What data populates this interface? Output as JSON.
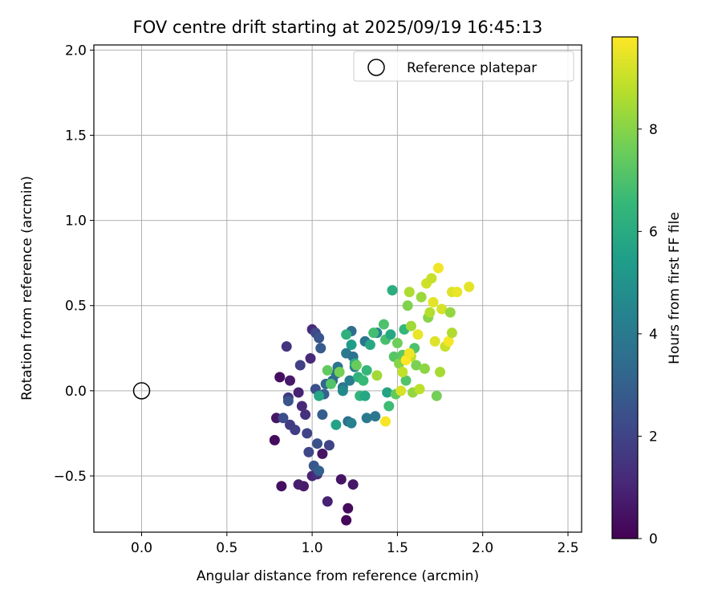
{
  "chart_data": {
    "type": "scatter",
    "title": "FOV centre drift starting at 2025/09/19 16:45:13",
    "xlabel": "Angular distance from reference (arcmin)",
    "ylabel": "Rotation from reference (arcmin)",
    "xlim": [
      -0.28,
      2.58
    ],
    "ylim": [
      -0.83,
      2.03
    ],
    "xticks": [
      0.0,
      0.5,
      1.0,
      1.5,
      2.0,
      2.5
    ],
    "xtick_labels": [
      "0.0",
      "0.5",
      "1.0",
      "1.5",
      "2.0",
      "2.5"
    ],
    "yticks": [
      -0.5,
      0.0,
      0.5,
      1.0,
      1.5,
      2.0
    ],
    "ytick_labels": [
      "−0.5",
      "0.0",
      "0.5",
      "1.0",
      "1.5",
      "2.0"
    ],
    "grid": true,
    "legend": {
      "position": "top-right",
      "entries": [
        "Reference platepar"
      ]
    },
    "reference_point": {
      "x": 0.0,
      "y": 0.0,
      "label": "Reference platepar"
    },
    "colorbar": {
      "label": "Hours from first FF file",
      "min": 0,
      "max": 9.8,
      "ticks": [
        0,
        2,
        4,
        6,
        8
      ],
      "tick_labels": [
        "0",
        "2",
        "4",
        "6",
        "8"
      ],
      "colormap": "viridis",
      "colormap_stops": [
        "#440154",
        "#482878",
        "#3e4989",
        "#31688e",
        "#26828e",
        "#1f9e89",
        "#35b779",
        "#6ece58",
        "#b5de2b",
        "#fde725"
      ]
    },
    "points": [
      {
        "x": 1.2,
        "y": -0.76,
        "t": 0.2
      },
      {
        "x": 1.21,
        "y": -0.69,
        "t": 0.3
      },
      {
        "x": 0.82,
        "y": -0.56,
        "t": 0.4
      },
      {
        "x": 1.17,
        "y": -0.52,
        "t": 0.5
      },
      {
        "x": 1.24,
        "y": -0.55,
        "t": 0.6
      },
      {
        "x": 0.95,
        "y": -0.56,
        "t": 0.7
      },
      {
        "x": 0.92,
        "y": -0.55,
        "t": 0.8
      },
      {
        "x": 1.09,
        "y": -0.65,
        "t": 0.9
      },
      {
        "x": 1.06,
        "y": -0.37,
        "t": 0.5
      },
      {
        "x": 0.78,
        "y": -0.29,
        "t": 0.3
      },
      {
        "x": 0.79,
        "y": -0.16,
        "t": 0.6
      },
      {
        "x": 0.81,
        "y": 0.08,
        "t": 0.4
      },
      {
        "x": 0.87,
        "y": 0.06,
        "t": 0.7
      },
      {
        "x": 0.92,
        "y": -0.01,
        "t": 0.9
      },
      {
        "x": 1.0,
        "y": -0.5,
        "t": 1.0
      },
      {
        "x": 1.03,
        "y": -0.49,
        "t": 1.3
      },
      {
        "x": 0.94,
        "y": -0.09,
        "t": 1.2
      },
      {
        "x": 0.96,
        "y": -0.14,
        "t": 1.4
      },
      {
        "x": 0.85,
        "y": 0.26,
        "t": 1.5
      },
      {
        "x": 0.86,
        "y": -0.04,
        "t": 1.6
      },
      {
        "x": 0.87,
        "y": -0.2,
        "t": 1.7
      },
      {
        "x": 0.9,
        "y": -0.23,
        "t": 1.8
      },
      {
        "x": 0.93,
        "y": 0.15,
        "t": 1.9
      },
      {
        "x": 0.97,
        "y": -0.25,
        "t": 2.0
      },
      {
        "x": 0.98,
        "y": -0.36,
        "t": 2.1
      },
      {
        "x": 0.99,
        "y": 0.19,
        "t": 1.1
      },
      {
        "x": 1.0,
        "y": 0.36,
        "t": 1.2
      },
      {
        "x": 1.02,
        "y": 0.34,
        "t": 2.2
      },
      {
        "x": 1.02,
        "y": 0.01,
        "t": 2.4
      },
      {
        "x": 1.03,
        "y": -0.31,
        "t": 2.5
      },
      {
        "x": 1.04,
        "y": 0.31,
        "t": 2.6
      },
      {
        "x": 1.05,
        "y": 0.25,
        "t": 2.8
      },
      {
        "x": 1.06,
        "y": -0.14,
        "t": 2.9
      },
      {
        "x": 1.07,
        "y": -0.02,
        "t": 3.0
      },
      {
        "x": 1.08,
        "y": 0.04,
        "t": 3.2
      },
      {
        "x": 1.1,
        "y": -0.32,
        "t": 3.3
      },
      {
        "x": 1.1,
        "y": -0.32,
        "t": 2.0
      },
      {
        "x": 1.12,
        "y": 0.06,
        "t": 3.4
      },
      {
        "x": 1.14,
        "y": 0.1,
        "t": 3.6
      },
      {
        "x": 0.83,
        "y": -0.16,
        "t": 2.3
      },
      {
        "x": 0.86,
        "y": -0.06,
        "t": 2.6
      },
      {
        "x": 1.01,
        "y": -0.44,
        "t": 2.7
      },
      {
        "x": 1.04,
        "y": -0.47,
        "t": 3.0
      },
      {
        "x": 1.15,
        "y": 0.14,
        "t": 3.8
      },
      {
        "x": 1.18,
        "y": 0.02,
        "t": 3.9
      },
      {
        "x": 1.2,
        "y": 0.22,
        "t": 4.0
      },
      {
        "x": 1.22,
        "y": 0.06,
        "t": 4.2
      },
      {
        "x": 1.23,
        "y": 0.35,
        "t": 3.5
      },
      {
        "x": 1.24,
        "y": 0.2,
        "t": 3.7
      },
      {
        "x": 1.25,
        "y": 0.14,
        "t": 4.1
      },
      {
        "x": 1.21,
        "y": -0.18,
        "t": 3.6
      },
      {
        "x": 1.23,
        "y": -0.19,
        "t": 4.3
      },
      {
        "x": 1.31,
        "y": 0.29,
        "t": 3.8
      },
      {
        "x": 1.32,
        "y": -0.16,
        "t": 4.0
      },
      {
        "x": 1.37,
        "y": -0.15,
        "t": 3.9
      },
      {
        "x": 1.38,
        "y": 0.34,
        "t": 4.4
      },
      {
        "x": 1.18,
        "y": 0.0,
        "t": 4.6
      },
      {
        "x": 1.14,
        "y": -0.2,
        "t": 5.6
      },
      {
        "x": 1.2,
        "y": 0.33,
        "t": 6.2
      },
      {
        "x": 1.23,
        "y": 0.27,
        "t": 5.4
      },
      {
        "x": 1.25,
        "y": 0.16,
        "t": 6.0
      },
      {
        "x": 1.27,
        "y": 0.08,
        "t": 6.3
      },
      {
        "x": 1.28,
        "y": -0.03,
        "t": 6.4
      },
      {
        "x": 1.3,
        "y": 0.06,
        "t": 6.6
      },
      {
        "x": 1.31,
        "y": -0.03,
        "t": 5.8
      },
      {
        "x": 1.32,
        "y": 0.12,
        "t": 6.5
      },
      {
        "x": 1.34,
        "y": 0.27,
        "t": 5.9
      },
      {
        "x": 1.36,
        "y": 0.34,
        "t": 6.8
      },
      {
        "x": 1.38,
        "y": 0.09,
        "t": 8.4
      },
      {
        "x": 1.42,
        "y": 0.39,
        "t": 7.0
      },
      {
        "x": 1.43,
        "y": 0.3,
        "t": 6.9
      },
      {
        "x": 1.44,
        "y": -0.01,
        "t": 5.7
      },
      {
        "x": 1.45,
        "y": -0.09,
        "t": 6.7
      },
      {
        "x": 1.46,
        "y": 0.33,
        "t": 5.9
      },
      {
        "x": 1.47,
        "y": 0.59,
        "t": 6.1
      },
      {
        "x": 1.48,
        "y": 0.2,
        "t": 7.2
      },
      {
        "x": 1.49,
        "y": -0.02,
        "t": 7.4
      },
      {
        "x": 1.5,
        "y": 0.28,
        "t": 7.6
      },
      {
        "x": 1.51,
        "y": 0.16,
        "t": 8.0
      },
      {
        "x": 1.52,
        "y": 0.0,
        "t": 9.2
      },
      {
        "x": 1.53,
        "y": 0.21,
        "t": 7.3
      },
      {
        "x": 1.54,
        "y": 0.36,
        "t": 6.5
      },
      {
        "x": 1.55,
        "y": 0.06,
        "t": 7.1
      },
      {
        "x": 1.56,
        "y": 0.5,
        "t": 7.9
      },
      {
        "x": 1.57,
        "y": 0.58,
        "t": 8.6
      },
      {
        "x": 1.58,
        "y": 0.2,
        "t": 8.9
      },
      {
        "x": 1.59,
        "y": -0.01,
        "t": 8.2
      },
      {
        "x": 1.6,
        "y": 0.25,
        "t": 7.0
      },
      {
        "x": 1.61,
        "y": 0.15,
        "t": 7.8
      },
      {
        "x": 1.62,
        "y": 0.33,
        "t": 9.5
      },
      {
        "x": 1.63,
        "y": 0.01,
        "t": 8.8
      },
      {
        "x": 1.64,
        "y": 0.55,
        "t": 8.3
      },
      {
        "x": 1.66,
        "y": 0.13,
        "t": 8.1
      },
      {
        "x": 1.67,
        "y": 0.63,
        "t": 9.1
      },
      {
        "x": 1.68,
        "y": 0.43,
        "t": 8.0
      },
      {
        "x": 1.69,
        "y": 0.46,
        "t": 8.7
      },
      {
        "x": 1.7,
        "y": 0.66,
        "t": 9.0
      },
      {
        "x": 1.71,
        "y": 0.52,
        "t": 9.4
      },
      {
        "x": 1.72,
        "y": 0.29,
        "t": 9.3
      },
      {
        "x": 1.73,
        "y": -0.03,
        "t": 7.7
      },
      {
        "x": 1.74,
        "y": 0.72,
        "t": 9.6
      },
      {
        "x": 1.75,
        "y": 0.11,
        "t": 8.5
      },
      {
        "x": 1.76,
        "y": 0.48,
        "t": 9.2
      },
      {
        "x": 1.78,
        "y": 0.26,
        "t": 9.0
      },
      {
        "x": 1.8,
        "y": 0.29,
        "t": 9.7
      },
      {
        "x": 1.81,
        "y": 0.46,
        "t": 8.2
      },
      {
        "x": 1.82,
        "y": 0.34,
        "t": 8.6
      },
      {
        "x": 1.82,
        "y": 0.58,
        "t": 9.3
      },
      {
        "x": 1.85,
        "y": 0.58,
        "t": 9.5
      },
      {
        "x": 1.92,
        "y": 0.61,
        "t": 9.4
      },
      {
        "x": 1.55,
        "y": 0.18,
        "t": 9.8
      },
      {
        "x": 1.57,
        "y": 0.22,
        "t": 9.6
      },
      {
        "x": 1.43,
        "y": -0.18,
        "t": 9.7
      },
      {
        "x": 1.53,
        "y": 0.11,
        "t": 8.9
      },
      {
        "x": 1.58,
        "y": 0.38,
        "t": 8.4
      },
      {
        "x": 1.26,
        "y": 0.15,
        "t": 7.5
      },
      {
        "x": 1.16,
        "y": 0.11,
        "t": 7.7
      },
      {
        "x": 1.11,
        "y": 0.04,
        "t": 7.1
      },
      {
        "x": 1.04,
        "y": -0.03,
        "t": 5.8
      },
      {
        "x": 1.09,
        "y": 0.12,
        "t": 7.4
      }
    ]
  }
}
